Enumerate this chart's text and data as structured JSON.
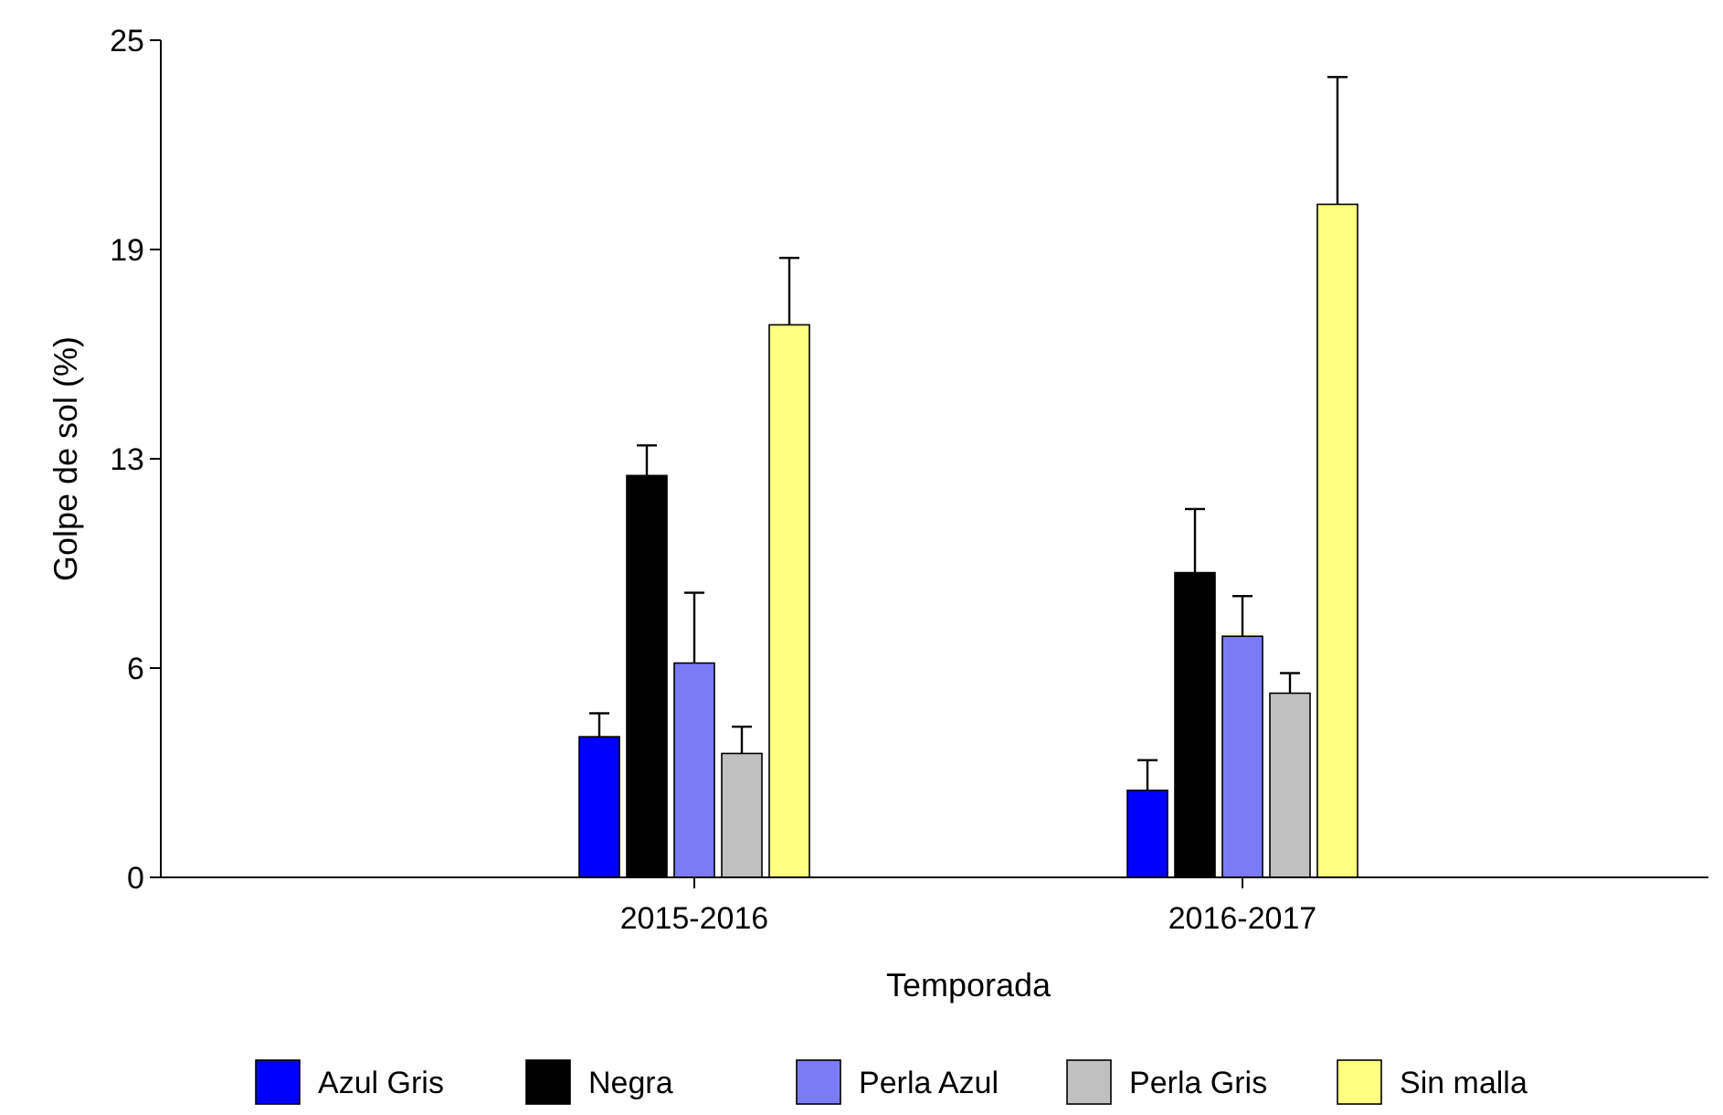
{
  "chart_data": {
    "type": "bar",
    "xlabel": "Temporada",
    "ylabel": "Golpe de sol (%)",
    "categories": [
      "2015-2016",
      "2016-2017"
    ],
    "ylim": [
      0,
      25
    ],
    "yticks": [
      0,
      {
        "value": 6.25,
        "label": "6"
      },
      {
        "value": 12.5,
        "label": "13"
      },
      {
        "value": 18.75,
        "label": "19"
      },
      25
    ],
    "legend": "bottom",
    "grid": false,
    "series": [
      {
        "name": "Azul Gris",
        "color": "#0000ff",
        "values": [
          4.2,
          2.6
        ],
        "errors": [
          [
            4.2,
            4.9
          ],
          [
            2.6,
            3.5
          ]
        ]
      },
      {
        "name": "Negra",
        "color": "#000000",
        "values": [
          12.0,
          9.1
        ],
        "errors": [
          [
            12.0,
            12.9
          ],
          [
            9.1,
            11.0
          ]
        ]
      },
      {
        "name": "Perla Azul",
        "color": "#7b7bf7",
        "values": [
          6.4,
          7.2
        ],
        "errors": [
          [
            6.4,
            8.5
          ],
          [
            7.2,
            8.4
          ]
        ]
      },
      {
        "name": "Perla Gris",
        "color": "#c0c0c0",
        "values": [
          3.7,
          5.5
        ],
        "errors": [
          [
            3.7,
            4.5
          ],
          [
            5.5,
            6.1
          ]
        ]
      },
      {
        "name": "Sin malla",
        "color": "#ffff80",
        "values": [
          16.5,
          20.1
        ],
        "errors": [
          [
            16.5,
            18.5
          ],
          [
            20.1,
            23.9
          ]
        ]
      }
    ]
  }
}
